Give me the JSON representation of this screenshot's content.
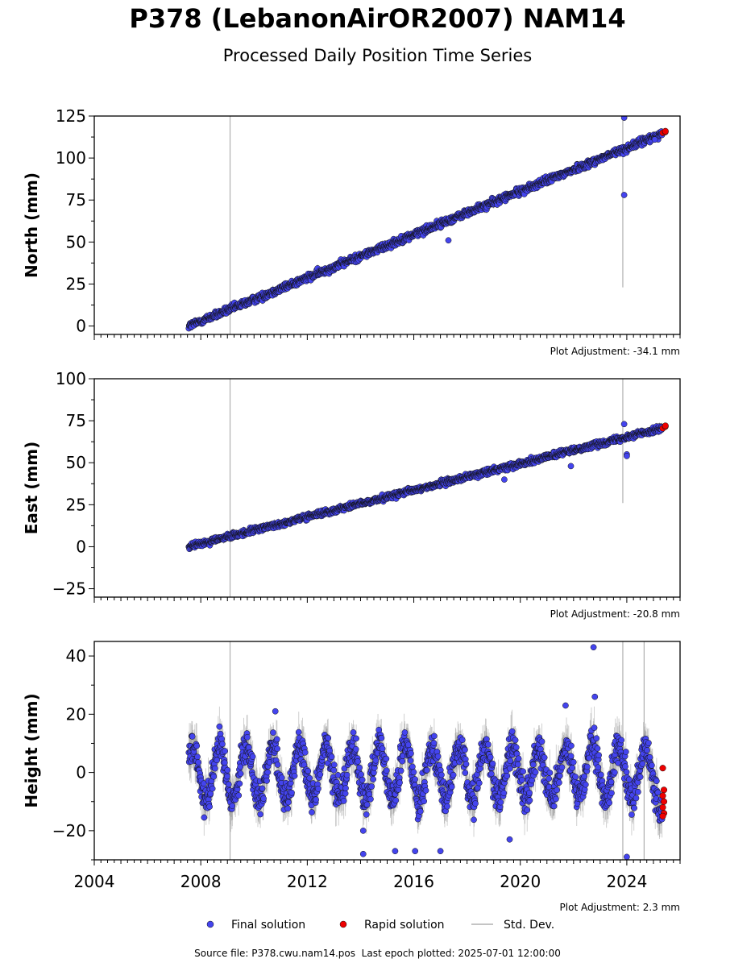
{
  "title": "P378 (LebanonAirOR2007) NAM14",
  "subtitle": "Processed Daily Position Time Series",
  "footer": {
    "source_file": "Source file: P378.cwu.nam14.pos",
    "last_epoch": "Last epoch plotted: 2025-07-01 12:00:00"
  },
  "legend": {
    "final": "Final solution",
    "rapid": "Rapid solution",
    "std": "Std. Dev."
  },
  "colors": {
    "final": "#4444ee",
    "rapid": "#ee0000",
    "std": "#b0b0b0",
    "edge": "#111111"
  },
  "chart_data": [
    {
      "type": "scatter",
      "panel": "north",
      "ylabel": "North (mm)",
      "ylim": [
        -5,
        125
      ],
      "yticks": [
        0,
        25,
        50,
        75,
        100,
        125
      ],
      "adjustment_text": "Plot Adjustment: -34.1 mm",
      "x_range": [
        2004.0,
        2026.0
      ],
      "xticks": [
        "2004",
        "2008",
        "2012",
        "2016",
        "2020",
        "2024"
      ],
      "series": [
        {
          "name": "Final solution",
          "trend": [
            [
              2007.55,
              0.0
            ],
            [
              2025.4,
              115.0
            ]
          ],
          "noise_mm": 1.5
        },
        {
          "name": "Rapid solution",
          "x": [
            2025.35,
            2025.4,
            2025.45
          ],
          "y": [
            115.0,
            115.5,
            116.0
          ]
        }
      ],
      "outliers": [
        {
          "x": 2023.9,
          "y": 78
        },
        {
          "x": 2023.9,
          "y": 124
        },
        {
          "x": 2017.3,
          "y": 51
        },
        {
          "x": 2025.05,
          "y": 111
        }
      ],
      "std_spikes": [
        {
          "x": 2009.1,
          "y0": -5,
          "y1": 125
        },
        {
          "x": 2023.85,
          "y0": 23,
          "y1": 125
        }
      ],
      "grid": false
    },
    {
      "type": "scatter",
      "panel": "east",
      "ylabel": "East (mm)",
      "ylim": [
        -30,
        100
      ],
      "yticks": [
        -25,
        0,
        25,
        50,
        75,
        100
      ],
      "adjustment_text": "Plot Adjustment: -20.8 mm",
      "x_range": [
        2004.0,
        2026.0
      ],
      "xticks": [
        "2004",
        "2008",
        "2012",
        "2016",
        "2020",
        "2024"
      ],
      "series": [
        {
          "name": "Final solution",
          "trend": [
            [
              2007.55,
              0.0
            ],
            [
              2025.4,
              71.0
            ]
          ],
          "noise_mm": 1.2
        },
        {
          "name": "Rapid solution",
          "x": [
            2025.35,
            2025.4,
            2025.45
          ],
          "y": [
            70.5,
            71.5,
            72.0
          ]
        }
      ],
      "outliers": [
        {
          "x": 2023.9,
          "y": 73
        },
        {
          "x": 2024.0,
          "y": 55
        },
        {
          "x": 2024.0,
          "y": 54
        },
        {
          "x": 2019.4,
          "y": 40
        },
        {
          "x": 2021.9,
          "y": 48
        }
      ],
      "std_spikes": [
        {
          "x": 2009.1,
          "y0": -30,
          "y1": 100
        },
        {
          "x": 2023.85,
          "y0": 26,
          "y1": 100
        }
      ],
      "grid": false
    },
    {
      "type": "scatter",
      "panel": "height",
      "ylabel": "Height (mm)",
      "ylim": [
        -30,
        45
      ],
      "yticks": [
        -20,
        0,
        20,
        40
      ],
      "adjustment_text": "Plot Adjustment: 2.3 mm",
      "x_range": [
        2004.0,
        2026.0
      ],
      "xticks": [
        "2004",
        "2008",
        "2012",
        "2016",
        "2020",
        "2024"
      ],
      "series": [
        {
          "name": "Final solution",
          "seasonal_amplitude_mm": 9,
          "noise_mm": 4
        },
        {
          "name": "Rapid solution",
          "x": [
            2025.35,
            2025.35,
            2025.35,
            2025.35,
            2025.35,
            2025.35,
            2025.35
          ],
          "y": [
            1.5,
            -6,
            -8,
            -10,
            -12,
            -14,
            -15
          ]
        }
      ],
      "outliers": [
        {
          "x": 2022.75,
          "y": 43
        },
        {
          "x": 2022.8,
          "y": 26
        },
        {
          "x": 2021.7,
          "y": 23
        },
        {
          "x": 2010.8,
          "y": 21
        },
        {
          "x": 2014.1,
          "y": -28
        },
        {
          "x": 2015.3,
          "y": -27
        },
        {
          "x": 2016.05,
          "y": -27
        },
        {
          "x": 2017.0,
          "y": -27
        },
        {
          "x": 2024.0,
          "y": -29
        },
        {
          "x": 2014.1,
          "y": -20
        },
        {
          "x": 2019.6,
          "y": -23
        }
      ],
      "std_spikes": [
        {
          "x": 2009.1,
          "y0": -30,
          "y1": 45
        },
        {
          "x": 2023.85,
          "y0": -30,
          "y1": 45
        },
        {
          "x": 2024.65,
          "y0": -30,
          "y1": 45
        }
      ],
      "grid": false
    }
  ]
}
